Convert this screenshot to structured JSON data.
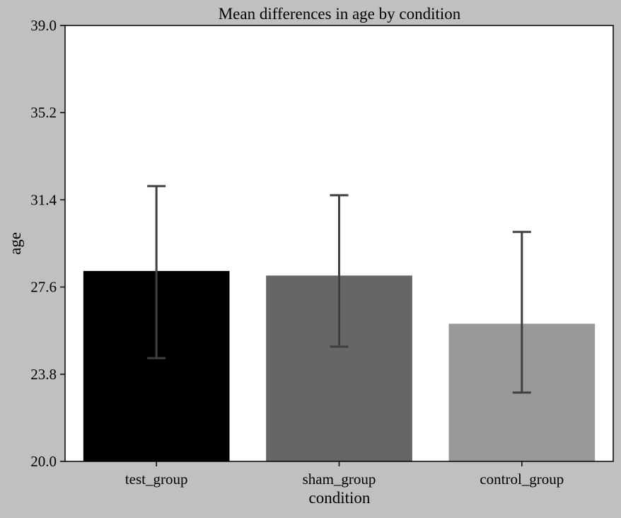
{
  "chart_data": {
    "type": "bar",
    "title": "Mean differences in age by condition",
    "xlabel": "condition",
    "ylabel": "age",
    "categories": [
      "test_group",
      "sham_group",
      "control_group"
    ],
    "values": [
      28.3,
      28.1,
      26.0
    ],
    "error_bars": [
      {
        "low": 24.5,
        "high": 32.0
      },
      {
        "low": 25.0,
        "high": 31.6
      },
      {
        "low": 23.0,
        "high": 30.0
      }
    ],
    "ylim": [
      20.0,
      39.0
    ],
    "yticks": [
      "20.0",
      "23.8",
      "27.6",
      "31.4",
      "35.2",
      "39.0"
    ],
    "grid": false,
    "colors": {
      "bars": [
        "#000000",
        "#666666",
        "#999999"
      ],
      "error_bar": "#3f3f3f",
      "plot_background": "#ffffff",
      "figure_background": "#c0c0c0"
    }
  }
}
